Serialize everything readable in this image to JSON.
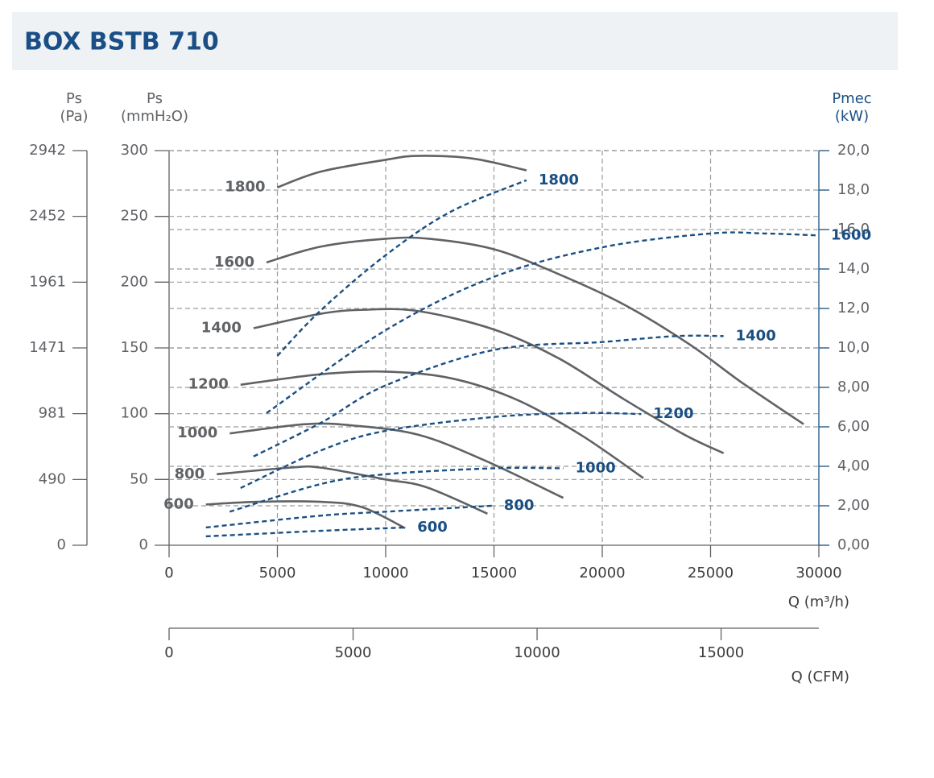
{
  "chart_data": {
    "type": "line",
    "title": "BOX BSTB 710",
    "y3_label": [
      "Ps",
      "(Pa)"
    ],
    "y_label": [
      "Ps",
      "(mmH₂O)"
    ],
    "y2_label": [
      "Pmec",
      "(kW)"
    ],
    "x_label": "Q (m³/h)",
    "x2_label": "Q (CFM)",
    "xlim": [
      0,
      30000
    ],
    "xticks": [
      0,
      5000,
      10000,
      15000,
      20000,
      25000,
      30000
    ],
    "x2lim": [
      0,
      17657
    ],
    "x2ticks": [
      0,
      5000,
      10000,
      15000
    ],
    "ylim": [
      0,
      300
    ],
    "yticks": [
      0,
      50,
      100,
      150,
      200,
      250,
      300
    ],
    "y3lim": [
      0,
      2942
    ],
    "y3ticks": [
      0,
      490,
      981,
      1471,
      1961,
      2452,
      2942
    ],
    "y2lim": [
      0,
      20
    ],
    "y2ticks": [
      {
        "value": 0,
        "label": "0,00"
      },
      {
        "value": 2,
        "label": "2,00"
      },
      {
        "value": 4,
        "label": "4,00"
      },
      {
        "value": 6,
        "label": "6,00"
      },
      {
        "value": 8,
        "label": "8,00"
      },
      {
        "value": 10,
        "label": "10,0"
      },
      {
        "value": 12,
        "label": "12,0"
      },
      {
        "value": 14,
        "label": "14,0"
      },
      {
        "value": 16,
        "label": "16,0"
      },
      {
        "value": 18,
        "label": "18,0"
      },
      {
        "value": 20,
        "label": "20,0"
      }
    ],
    "grid": true,
    "series": [
      {
        "name": "1800",
        "color": "#5f6266",
        "x": [
          5000,
          7000,
          10000,
          11500,
          14000,
          16500
        ],
        "values": [
          272,
          284,
          293,
          296,
          294,
          285
        ]
      },
      {
        "name": "1600",
        "color": "#5f6266",
        "x": [
          4500,
          7000,
          10000,
          12000,
          15000,
          18000,
          21000,
          24000,
          26500,
          29300
        ],
        "values": [
          215,
          227,
          233,
          233,
          225,
          206,
          183,
          153,
          123,
          92
        ]
      },
      {
        "name": "1400",
        "color": "#5f6266",
        "x": [
          3900,
          7000,
          9000,
          11500,
          15000,
          18000,
          21000,
          23800,
          25600
        ],
        "values": [
          165,
          176,
          179,
          178,
          164,
          142,
          111,
          84,
          70
        ]
      },
      {
        "name": "1200",
        "color": "#5f6266",
        "x": [
          3300,
          7000,
          10000,
          13000,
          16000,
          19000,
          21900
        ],
        "values": [
          122,
          130,
          132,
          127,
          111,
          84,
          51
        ]
      },
      {
        "name": "1000",
        "color": "#5f6266",
        "x": [
          2800,
          6300,
          8500,
          11500,
          14500,
          18200
        ],
        "values": [
          85,
          92,
          91,
          84,
          65,
          36
        ]
      },
      {
        "name": "800",
        "color": "#5f6266",
        "x": [
          2200,
          5600,
          7000,
          10000,
          11900,
          14700
        ],
        "values": [
          54,
          59,
          59,
          50,
          44,
          24
        ]
      },
      {
        "name": "600",
        "color": "#5f6266",
        "x": [
          1700,
          4100,
          7000,
          8900,
          10900
        ],
        "values": [
          31,
          33,
          33,
          29,
          13
        ]
      },
      {
        "name": "1800",
        "color": "#1b4f82",
        "axis": "y2",
        "x": [
          5000,
          7000,
          10000,
          13000,
          16500
        ],
        "values": [
          9.6,
          11.9,
          14.7,
          16.9,
          18.5
        ]
      },
      {
        "name": "1600",
        "color": "#1b4f82",
        "axis": "y2",
        "x": [
          4500,
          10000,
          15000,
          20000,
          25000,
          27500,
          30000
        ],
        "values": [
          6.7,
          10.9,
          13.6,
          15.1,
          15.8,
          15.8,
          15.7
        ]
      },
      {
        "name": "1400",
        "color": "#1b4f82",
        "axis": "y2",
        "x": [
          3900,
          7000,
          10000,
          15000,
          20000,
          23400,
          25600
        ],
        "values": [
          4.5,
          6.2,
          8.1,
          9.9,
          10.3,
          10.6,
          10.6
        ]
      },
      {
        "name": "1200",
        "color": "#1b4f82",
        "axis": "y2",
        "x": [
          3300,
          7000,
          10000,
          15000,
          19000,
          21800
        ],
        "values": [
          2.9,
          4.8,
          5.8,
          6.5,
          6.7,
          6.65
        ]
      },
      {
        "name": "1000",
        "color": "#1b4f82",
        "axis": "y2",
        "x": [
          2800,
          7000,
          10000,
          15000,
          18200
        ],
        "values": [
          1.7,
          3.1,
          3.6,
          3.9,
          3.9
        ]
      },
      {
        "name": "800",
        "color": "#1b4f82",
        "axis": "y2",
        "x": [
          1700,
          7000,
          10000,
          14900
        ],
        "values": [
          0.9,
          1.5,
          1.7,
          2.0
        ]
      },
      {
        "name": "600",
        "color": "#1b4f82",
        "axis": "y2",
        "x": [
          1700,
          7000,
          10900
        ],
        "values": [
          0.45,
          0.73,
          0.9
        ]
      }
    ]
  }
}
